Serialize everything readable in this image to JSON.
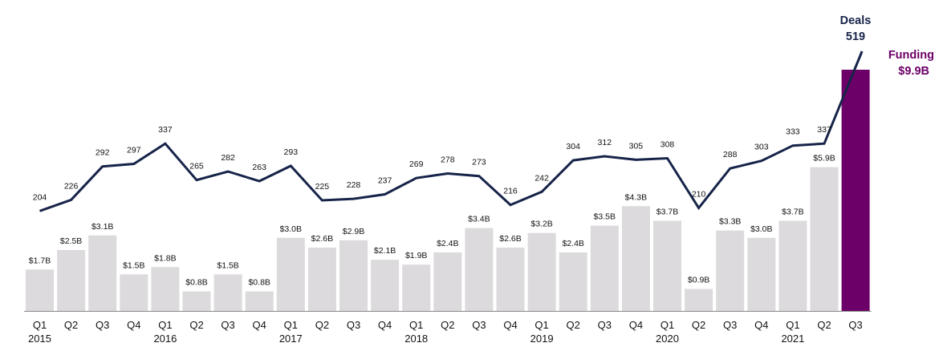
{
  "chart_data": {
    "type": "bar",
    "categories": [
      "Q1",
      "Q2",
      "Q3",
      "Q4",
      "Q1",
      "Q2",
      "Q3",
      "Q4",
      "Q1",
      "Q2",
      "Q3",
      "Q4",
      "Q1",
      "Q2",
      "Q3",
      "Q4",
      "Q1",
      "Q2",
      "Q3",
      "Q4",
      "Q1",
      "Q2",
      "Q3",
      "Q4",
      "Q1",
      "Q2",
      "Q3"
    ],
    "year_labels": [
      {
        "index": 0,
        "label": "2015"
      },
      {
        "index": 4,
        "label": "2016"
      },
      {
        "index": 8,
        "label": "2017"
      },
      {
        "index": 12,
        "label": "2018"
      },
      {
        "index": 16,
        "label": "2019"
      },
      {
        "index": 20,
        "label": "2020"
      },
      {
        "index": 24,
        "label": "2021"
      }
    ],
    "series": [
      {
        "name": "Funding",
        "kind": "bar",
        "values": [
          1.7,
          2.5,
          3.1,
          1.5,
          1.8,
          0.8,
          1.5,
          0.8,
          3.0,
          2.6,
          2.9,
          2.1,
          1.9,
          2.4,
          3.4,
          2.6,
          3.2,
          2.4,
          3.5,
          4.3,
          3.7,
          0.9,
          3.3,
          3.0,
          3.7,
          5.9,
          9.9
        ],
        "labels": [
          "$1.7B",
          "$2.5B",
          "$3.1B",
          "$1.5B",
          "$1.8B",
          "$0.8B",
          "$1.5B",
          "$0.8B",
          "$3.0B",
          "$2.6B",
          "$2.9B",
          "$2.1B",
          "$1.9B",
          "$2.4B",
          "$3.4B",
          "$2.6B",
          "$3.2B",
          "$2.4B",
          "$3.5B",
          "$4.3B",
          "$3.7B",
          "$0.9B",
          "$3.3B",
          "$3.0B",
          "$3.7B",
          "$5.9B",
          ""
        ]
      },
      {
        "name": "Deals",
        "kind": "line",
        "values": [
          204,
          226,
          292,
          297,
          337,
          265,
          282,
          263,
          293,
          225,
          228,
          237,
          269,
          278,
          273,
          216,
          242,
          304,
          312,
          305,
          308,
          210,
          288,
          303,
          333,
          337,
          519
        ],
        "labels": [
          "204",
          "226",
          "292",
          "297",
          "337",
          "265",
          "282",
          "263",
          "293",
          "225",
          "228",
          "237",
          "269",
          "278",
          "273",
          "216",
          "242",
          "304",
          "312",
          "305",
          "308",
          "210",
          "288",
          "303",
          "333",
          "337",
          ""
        ]
      }
    ],
    "callouts": {
      "deals_title": "Deals",
      "deals_value": "519",
      "funding_title": "Funding",
      "funding_value": "$9.9B"
    },
    "colors": {
      "bar": "#dcdadc",
      "bar_highlight": "#6d0068",
      "line": "#172449",
      "axis": "#888888",
      "funding_callout": "#6d0068",
      "deals_callout": "#172449"
    },
    "legend": "none",
    "grid": false,
    "xlabel": "",
    "ylabel": ""
  }
}
